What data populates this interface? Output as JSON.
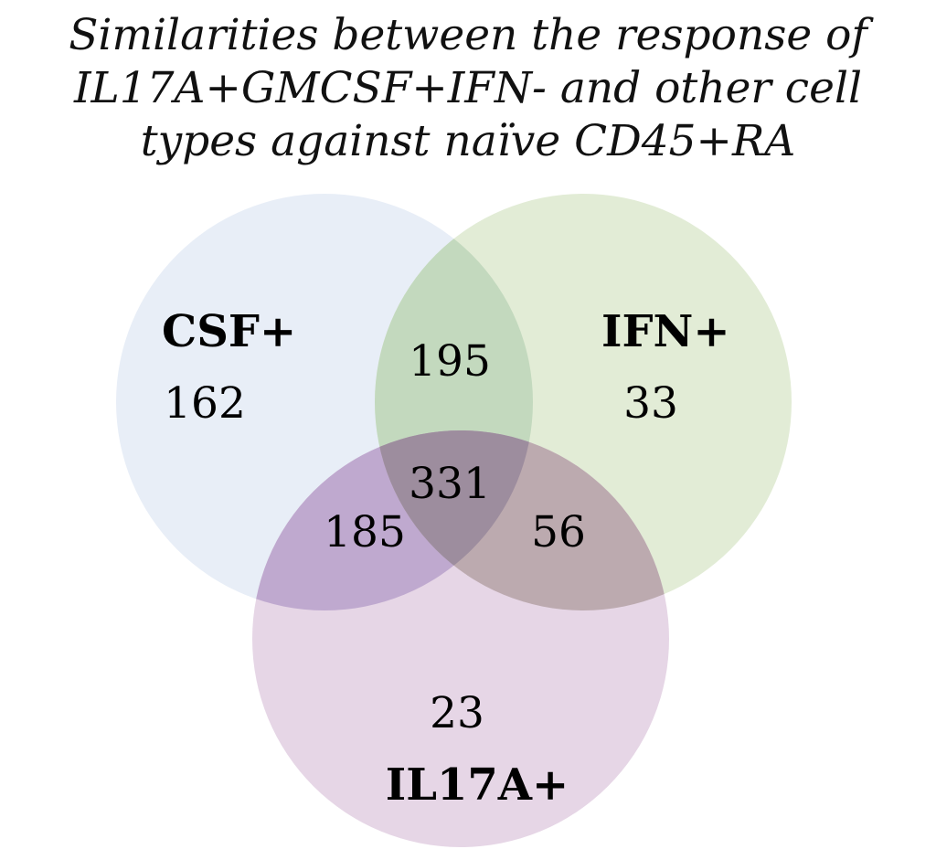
{
  "title": {
    "lines": [
      "Similarities between the response of",
      "IL17A+GMCSF+IFN- and other cell",
      "types against naïve CD45+RA"
    ]
  },
  "chart_data": {
    "type": "venn3",
    "sets": [
      {
        "name": "CSF+",
        "color": "#e8eef7"
      },
      {
        "name": "IFN+",
        "color": "#e2ecd6"
      },
      {
        "name": "IL17A+",
        "color": "#e6d6e6"
      }
    ],
    "regions": {
      "CSF+ only": "162",
      "IFN+ only": "33",
      "IL17A+ only": "23",
      "CSF+ & IFN+": "195",
      "CSF+ & IL17A+": "185",
      "IFN+ & IL17A+": "56",
      "CSF+ & IFN+ & IL17A+": "331"
    },
    "colors": {
      "csf_ifn": "#c3d9be",
      "csf_il17a": "#bfa9cf",
      "ifn_il17a": "#bcaaaf",
      "all": "#9d8d9e"
    }
  }
}
